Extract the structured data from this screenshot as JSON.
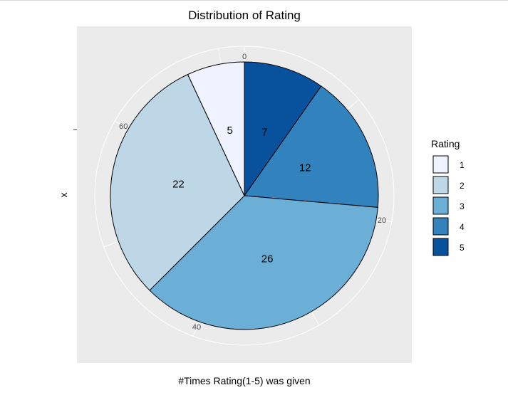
{
  "chart_data": {
    "type": "pie",
    "title": "Distribution of Rating",
    "xlabel": "#Times Rating(1-5) was given",
    "ylabel": "x",
    "total": 72,
    "theta_ticks": [
      0,
      20,
      40,
      60
    ],
    "categories": [
      "5",
      "4",
      "3",
      "2",
      "1"
    ],
    "values": [
      7,
      12,
      26,
      22,
      5
    ],
    "slice_labels": [
      "7",
      "12",
      "26",
      "22",
      "5"
    ],
    "colors": [
      "#08519c",
      "#3182bd",
      "#6baed6",
      "#bdd7e7",
      "#eff3ff"
    ],
    "legend": {
      "title": "Rating",
      "position": "right",
      "entries": [
        {
          "label": "1",
          "color": "#eff3ff"
        },
        {
          "label": "2",
          "color": "#bdd7e7"
        },
        {
          "label": "3",
          "color": "#6baed6"
        },
        {
          "label": "4",
          "color": "#3182bd"
        },
        {
          "label": "5",
          "color": "#08519c"
        }
      ]
    },
    "panel_background": "#ebebeb",
    "grid_color": "#ffffff",
    "slice_outline": "#000000"
  }
}
